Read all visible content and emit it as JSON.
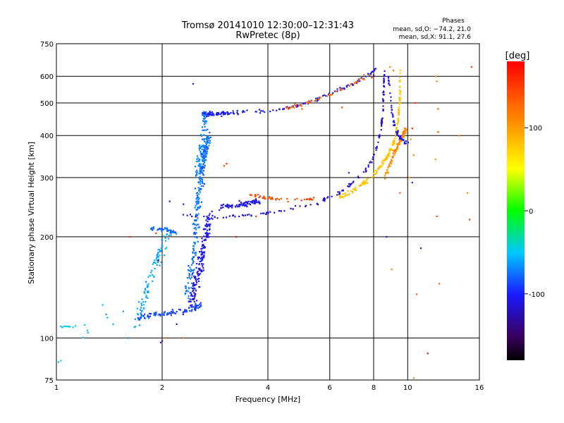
{
  "chart_data": {
    "type": "scatter",
    "title": "Tromsø 20141010 12:30:00–12:31:43",
    "subtitle": "RwPretec (8p)",
    "xlabel": "Frequency [MHz]",
    "ylabel": "Stationary phase Virtual Height [km]",
    "x_scale": "log",
    "y_scale": "log",
    "xlim": [
      1,
      16
    ],
    "ylim": [
      75,
      750
    ],
    "x_ticks": [
      {
        "v": 1,
        "label": "1"
      },
      {
        "v": 2,
        "label": "2"
      },
      {
        "v": 4,
        "label": "4"
      },
      {
        "v": 6,
        "label": "6"
      },
      {
        "v": 8,
        "label": "8"
      },
      {
        "v": 10,
        "label": "10"
      },
      {
        "v": 16,
        "label": "16"
      }
    ],
    "y_ticks": [
      {
        "v": 75,
        "label": "75"
      },
      {
        "v": 100,
        "label": "100"
      },
      {
        "v": 200,
        "label": "200"
      },
      {
        "v": 300,
        "label": "300"
      },
      {
        "v": 400,
        "label": "400"
      },
      {
        "v": 500,
        "label": "500"
      },
      {
        "v": 600,
        "label": "600"
      },
      {
        "v": 750,
        "label": "750"
      }
    ],
    "grid": true,
    "colorbar": {
      "label": "[deg]",
      "range": [
        -180,
        180
      ],
      "ticks": [
        {
          "v": 100,
          "label": "100"
        },
        {
          "v": 0,
          "label": "0"
        },
        {
          "v": -100,
          "label": "-100"
        }
      ]
    },
    "annotation": {
      "title": "Phases",
      "line1": "mean, sd,O: −74.2, 21.0",
      "line2": "mean, sd,X:  91.1, 27.6"
    },
    "traces": [
      {
        "name": "",
        "phase": -105,
        "n": 120,
        "jitter_h": 0.015,
        "points": [
          [
            2.55,
            470
          ],
          [
            3,
            468
          ],
          [
            4,
            473
          ],
          [
            4.8,
            488
          ],
          [
            5.5,
            512
          ],
          [
            6.3,
            545
          ],
          [
            7,
            572
          ],
          [
            7.7,
            605
          ],
          [
            8.1,
            630
          ]
        ]
      },
      {
        "name": "",
        "phase": -102,
        "n": 60,
        "jitter_h": 0.02,
        "points": [
          [
            2.6,
            465
          ],
          [
            2.8,
            462
          ],
          [
            3.3,
            468
          ]
        ]
      },
      {
        "name": "",
        "phase": 120,
        "n": 50,
        "jitter_h": 0.02,
        "points": [
          [
            4.5,
            482
          ],
          [
            5.2,
            500
          ],
          [
            6.3,
            540
          ],
          [
            7,
            570
          ],
          [
            7.8,
            610
          ]
        ]
      },
      {
        "name": "",
        "phase": -115,
        "n": 150,
        "jitter_h": 0.02,
        "points": [
          [
            2.3,
            232
          ],
          [
            2.9,
            230
          ],
          [
            3.6,
            232
          ],
          [
            4.5,
            240
          ],
          [
            5.5,
            252
          ],
          [
            6.3,
            268
          ],
          [
            7,
            290
          ],
          [
            7.7,
            320
          ],
          [
            8.1,
            360
          ],
          [
            8.4,
            420
          ],
          [
            8.5,
            480
          ],
          [
            8.55,
            560
          ],
          [
            8.6,
            640
          ]
        ]
      },
      {
        "name": "",
        "phase": -110,
        "n": 80,
        "jitter_h": 0.03,
        "points": [
          [
            2.9,
            245
          ],
          [
            3.4,
            250
          ],
          [
            3.8,
            255
          ]
        ]
      },
      {
        "name": "",
        "phase": 145,
        "n": 45,
        "jitter_h": 0.015,
        "points": [
          [
            3.5,
            268
          ],
          [
            3.9,
            262
          ],
          [
            4.4,
            258
          ],
          [
            5,
            258
          ],
          [
            5.5,
            260
          ]
        ]
      },
      {
        "name": "",
        "phase": 80,
        "n": 170,
        "jitter_h": 0.025,
        "points": [
          [
            6.3,
            262
          ],
          [
            7,
            275
          ],
          [
            7.7,
            295
          ],
          [
            8.3,
            320
          ],
          [
            8.8,
            350
          ],
          [
            9.2,
            390
          ],
          [
            9.4,
            450
          ],
          [
            9.5,
            520
          ],
          [
            9.5,
            640
          ]
        ]
      },
      {
        "name": "",
        "phase": 110,
        "n": 90,
        "jitter_h": 0.04,
        "points": [
          [
            8.6,
            300
          ],
          [
            9.2,
            360
          ],
          [
            9.7,
            400
          ],
          [
            9.9,
            420
          ]
        ]
      },
      {
        "name": "",
        "phase": -108,
        "n": 60,
        "jitter_h": 0.03,
        "points": [
          [
            8.8,
            600
          ],
          [
            9,
            480
          ],
          [
            9.2,
            420
          ],
          [
            9.6,
            390
          ],
          [
            10,
            380
          ]
        ]
      },
      {
        "name": "",
        "phase": -75,
        "n": 260,
        "jitter_h": 0.09,
        "jitter_f": 0.03,
        "points": [
          [
            2.35,
            135
          ],
          [
            2.45,
            170
          ],
          [
            2.5,
            220
          ],
          [
            2.55,
            270
          ],
          [
            2.6,
            320
          ],
          [
            2.65,
            370
          ],
          [
            2.7,
            400
          ]
        ]
      },
      {
        "name": "",
        "phase": -110,
        "n": 170,
        "jitter_h": 0.07,
        "jitter_f": 0.035,
        "points": [
          [
            2.4,
            125
          ],
          [
            2.55,
            160
          ],
          [
            2.65,
            200
          ],
          [
            2.75,
            230
          ]
        ]
      },
      {
        "name": "",
        "phase": -60,
        "n": 100,
        "jitter_h": 0.08,
        "jitter_f": 0.04,
        "points": [
          [
            1.7,
            110
          ],
          [
            1.8,
            140
          ],
          [
            1.95,
            175
          ],
          [
            2.1,
            210
          ]
        ]
      },
      {
        "name": "",
        "phase": -90,
        "n": 90,
        "jitter_h": 0.03,
        "jitter_f": 0.025,
        "points": [
          [
            1.7,
            115
          ],
          [
            2,
            118
          ],
          [
            2.3,
            120
          ],
          [
            2.6,
            125
          ]
        ]
      },
      {
        "name": "",
        "phase": -80,
        "n": 40,
        "jitter_h": 0.02,
        "jitter_f": 0.015,
        "points": [
          [
            1.85,
            212
          ],
          [
            2.05,
            210
          ],
          [
            2.2,
            205
          ]
        ]
      },
      {
        "name": "",
        "phase": -50,
        "n": 12,
        "jitter_h": 0.01,
        "jitter_f": 0.01,
        "points": [
          [
            1.03,
            108
          ],
          [
            1.12,
            108
          ],
          [
            1.2,
            110
          ]
        ]
      },
      {
        "name": "",
        "phase": -55,
        "n": 8,
        "jitter_h": 0.03,
        "jitter_f": 0.02,
        "points": [
          [
            1.0,
            85
          ],
          [
            1.1,
            86
          ],
          [
            1.35,
            125
          ],
          [
            1.4,
            115
          ]
        ]
      },
      {
        "name": "",
        "phase": -70,
        "n": 70,
        "jitter_h": 0.08,
        "jitter_f": 0.02,
        "points": [
          [
            2.5,
            300
          ],
          [
            2.6,
            380
          ],
          [
            2.65,
            460
          ]
        ]
      }
    ],
    "points": [
      {
        "f": 8.0,
        "h": 605,
        "p": -120
      },
      {
        "f": 7.9,
        "h": 595,
        "p": 150
      },
      {
        "f": 8.9,
        "h": 640,
        "p": 115
      },
      {
        "f": 9.1,
        "h": 625,
        "p": 120
      },
      {
        "f": 10.5,
        "h": 500,
        "p": 150
      },
      {
        "f": 10.3,
        "h": 420,
        "p": 160
      },
      {
        "f": 10.4,
        "h": 350,
        "p": 110
      },
      {
        "f": 10.3,
        "h": 290,
        "p": -100
      },
      {
        "f": 10.2,
        "h": 390,
        "p": 110
      },
      {
        "f": 9.5,
        "h": 270,
        "p": 130
      },
      {
        "f": 10.1,
        "h": 300,
        "p": 95
      },
      {
        "f": 10.9,
        "h": 185,
        "p": -110
      },
      {
        "f": 10.6,
        "h": 135,
        "p": 130
      },
      {
        "f": 10.4,
        "h": 76,
        "p": 110
      },
      {
        "f": 11.4,
        "h": 90,
        "p": 175
      },
      {
        "f": 12.0,
        "h": 600,
        "p": 115
      },
      {
        "f": 12.1,
        "h": 580,
        "p": 110
      },
      {
        "f": 12.2,
        "h": 480,
        "p": 130
      },
      {
        "f": 12.2,
        "h": 410,
        "p": 140
      },
      {
        "f": 12.0,
        "h": 340,
        "p": 100
      },
      {
        "f": 12.1,
        "h": 230,
        "p": 145
      },
      {
        "f": 12.3,
        "h": 145,
        "p": 130
      },
      {
        "f": 14.0,
        "h": 400,
        "p": 110
      },
      {
        "f": 14.8,
        "h": 270,
        "p": 115
      },
      {
        "f": 15.0,
        "h": 225,
        "p": 150
      },
      {
        "f": 15.2,
        "h": 640,
        "p": 145
      },
      {
        "f": 2.45,
        "h": 570,
        "p": -110
      },
      {
        "f": 3.05,
        "h": 330,
        "p": 160
      },
      {
        "f": 3.0,
        "h": 325,
        "p": 140
      },
      {
        "f": 3.25,
        "h": 200,
        "p": 175
      },
      {
        "f": 1.92,
        "h": 205,
        "p": 150
      },
      {
        "f": 1.62,
        "h": 200,
        "p": 160
      },
      {
        "f": 1.95,
        "h": 170,
        "p": -140
      },
      {
        "f": 2.0,
        "h": 98,
        "p": -140
      },
      {
        "f": 1.98,
        "h": 97,
        "p": -110
      },
      {
        "f": 2.05,
        "h": 100,
        "p": 140
      },
      {
        "f": 2.1,
        "h": 255,
        "p": -110
      },
      {
        "f": 2.3,
        "h": 250,
        "p": -100
      },
      {
        "f": 3.7,
        "h": 230,
        "p": 150
      },
      {
        "f": 5.0,
        "h": 480,
        "p": 140
      },
      {
        "f": 4.8,
        "h": 490,
        "p": 150
      },
      {
        "f": 6.5,
        "h": 485,
        "p": 145
      },
      {
        "f": 6.8,
        "h": 310,
        "p": -95
      },
      {
        "f": 8.7,
        "h": 200,
        "p": -105
      },
      {
        "f": 9.0,
        "h": 160,
        "p": 110
      },
      {
        "f": 2.3,
        "h": 100,
        "p": 130
      },
      {
        "f": 2.2,
        "h": 110,
        "p": -120
      },
      {
        "f": 1.55,
        "h": 120,
        "p": -60
      },
      {
        "f": 1.45,
        "h": 110,
        "p": -55
      },
      {
        "f": 1.6,
        "h": 100,
        "p": -70
      }
    ]
  }
}
